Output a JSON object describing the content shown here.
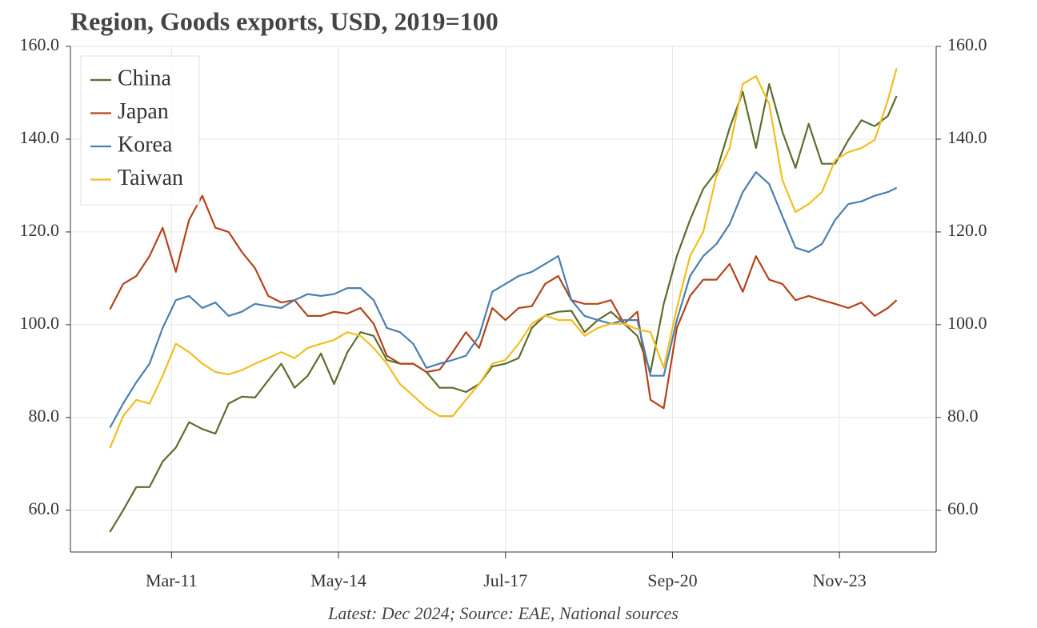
{
  "chart_data": {
    "type": "line",
    "title": "Region, Goods exports, USD, 2019=100",
    "footer": "Latest: Dec 2024; Source: EAE, National sources",
    "x": [
      "2010-01",
      "2010-04",
      "2010-07",
      "2010-10",
      "2011-01",
      "2011-04",
      "2011-07",
      "2011-10",
      "2012-01",
      "2012-04",
      "2012-07",
      "2012-10",
      "2013-01",
      "2013-04",
      "2013-07",
      "2013-10",
      "2014-01",
      "2014-04",
      "2014-07",
      "2014-10",
      "2015-01",
      "2015-04",
      "2015-07",
      "2015-10",
      "2016-01",
      "2016-04",
      "2016-07",
      "2016-10",
      "2017-01",
      "2017-04",
      "2017-07",
      "2017-10",
      "2018-01",
      "2018-04",
      "2018-07",
      "2018-10",
      "2019-01",
      "2019-04",
      "2019-07",
      "2019-10",
      "2020-01",
      "2020-04",
      "2020-07",
      "2020-10",
      "2021-01",
      "2021-04",
      "2021-07",
      "2021-10",
      "2022-01",
      "2022-04",
      "2022-07",
      "2022-10",
      "2023-01",
      "2023-04",
      "2023-07",
      "2023-10",
      "2024-01",
      "2024-04",
      "2024-07",
      "2024-10",
      "2024-12"
    ],
    "series": [
      {
        "name": "China",
        "color": "#5a6e2e",
        "values": [
          55.3,
          60,
          65,
          65,
          70.5,
          73.5,
          79,
          77.5,
          76.5,
          83,
          84.5,
          84.3,
          88,
          91.6,
          86.4,
          89,
          93.8,
          87.2,
          94,
          98.4,
          97.6,
          92.4,
          91.6,
          91.6,
          89.8,
          86.4,
          86.4,
          85.5,
          87.2,
          91,
          91.6,
          92.8,
          99.3,
          102,
          102.8,
          103,
          98.4,
          101,
          102.8,
          100.2,
          97.6,
          89.8,
          104.5,
          114.8,
          122.6,
          129.3,
          133,
          142.4,
          150.2,
          138.1,
          151.9,
          141.6,
          133.8,
          143.3,
          134.7,
          134.7,
          139.8,
          144.1,
          142.8,
          145,
          149.3
        ]
      },
      {
        "name": "Japan",
        "color": "#b5431a",
        "values": [
          103.3,
          108.8,
          110.5,
          114.8,
          120.9,
          111.4,
          122.6,
          127.8,
          120.9,
          120,
          115.7,
          112.2,
          106.2,
          104.8,
          105.3,
          101.9,
          101.9,
          102.8,
          102.4,
          103.6,
          100.2,
          93.3,
          91.6,
          91.6,
          89.8,
          90.3,
          94.1,
          98.4,
          95,
          103.6,
          101,
          103.6,
          104,
          108.8,
          110.5,
          105.3,
          104.5,
          104.5,
          105.3,
          100.2,
          102.8,
          83.8,
          82,
          99.3,
          106.2,
          109.7,
          109.7,
          113.1,
          107.1,
          114.8,
          109.7,
          108.8,
          105.3,
          106.2,
          105.3,
          104.5,
          103.6,
          104.8,
          101.9,
          103.6,
          105.3
        ]
      },
      {
        "name": "Korea",
        "color": "#4a7fb0",
        "values": [
          77.8,
          83,
          87.6,
          91.6,
          99.3,
          105.3,
          106.2,
          103.6,
          104.8,
          101.9,
          102.8,
          104.5,
          104,
          103.6,
          105.3,
          106.6,
          106.2,
          106.6,
          107.9,
          107.9,
          105.3,
          99.3,
          98.4,
          95.9,
          90.7,
          91.6,
          92.4,
          93.3,
          97.6,
          107.1,
          108.8,
          110.5,
          111.4,
          113.1,
          114.8,
          105.3,
          101.9,
          101,
          100.2,
          101,
          101,
          89,
          89,
          101,
          110.5,
          114.8,
          117.4,
          121.7,
          128.6,
          132.9,
          130.3,
          123.4,
          116.6,
          115.7,
          117.4,
          122.6,
          126,
          126.6,
          127.8,
          128.6,
          129.5
        ]
      },
      {
        "name": "Taiwan",
        "color": "#f2bd1d",
        "values": [
          73.4,
          80.3,
          83.8,
          83,
          89,
          95.9,
          94.1,
          91.6,
          89.8,
          89.3,
          90.2,
          91.6,
          92.8,
          94.1,
          92.8,
          95,
          95.9,
          96.7,
          98.4,
          97.6,
          95,
          91.6,
          87.2,
          84.7,
          82.1,
          80.3,
          80.3,
          83.8,
          87.2,
          91.6,
          92.4,
          95.9,
          100.2,
          102,
          101,
          101,
          97.6,
          99.3,
          100.2,
          100.2,
          99,
          98.4,
          90.7,
          103.6,
          114.8,
          120,
          132.1,
          138.1,
          151.9,
          153.6,
          147.6,
          131.2,
          124.3,
          126,
          128.6,
          135.5,
          137.2,
          138.1,
          139.8,
          148.4,
          155.3
        ]
      }
    ],
    "xlim": [
      "2009-04",
      "2025-09"
    ],
    "xticks": [
      {
        "value": "2011-03",
        "label": "Mar-11"
      },
      {
        "value": "2014-05",
        "label": "May-14"
      },
      {
        "value": "2017-07",
        "label": "Jul-17"
      },
      {
        "value": "2020-09",
        "label": "Sep-20"
      },
      {
        "value": "2023-11",
        "label": "Nov-23"
      }
    ],
    "ylim": [
      51,
      160
    ],
    "yticks": [
      {
        "value": 60,
        "label": "60.0"
      },
      {
        "value": 80,
        "label": "80.0"
      },
      {
        "value": 100,
        "label": "100.0"
      },
      {
        "value": 120,
        "label": "120.0"
      },
      {
        "value": 140,
        "label": "140.0"
      },
      {
        "value": 160,
        "label": "160.0"
      }
    ],
    "y2lim": [
      51,
      160
    ],
    "y2ticks": [
      {
        "value": 60,
        "label": "60.0"
      },
      {
        "value": 80,
        "label": "80.0"
      },
      {
        "value": 100,
        "label": "100.0"
      },
      {
        "value": 120,
        "label": "120.0"
      },
      {
        "value": 140,
        "label": "140.0"
      },
      {
        "value": 160,
        "label": "160.0"
      }
    ],
    "grid": true,
    "legend": "upper left"
  }
}
